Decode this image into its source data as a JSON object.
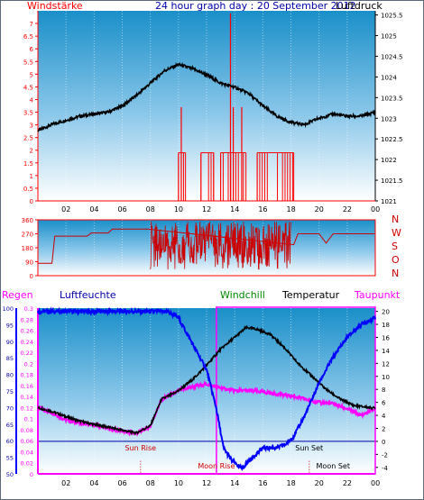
{
  "page": {
    "title": "24 hour graph day : 20 September 2012"
  },
  "chart_data": [
    {
      "type": "line",
      "title": "24 hour graph day : 20 September 2012",
      "left_label": "Windstärke",
      "right_label": "Luftdruck",
      "x_ticks": [
        "02",
        "04",
        "06",
        "08",
        "10",
        "12",
        "14",
        "16",
        "18",
        "20",
        "22",
        "00"
      ],
      "left_ticks": [
        "0",
        "0.5",
        "1",
        "1.5",
        "2",
        "2.5",
        "3",
        "3.5",
        "4",
        "4.5",
        "5",
        "5.5",
        "6",
        "6.5",
        "7"
      ],
      "right_ticks": [
        "1021",
        "1021.5",
        "1022",
        "1022.5",
        "1023",
        "1023.5",
        "1024",
        "1024.5",
        "1025",
        "1025.5"
      ],
      "ylim_left": [
        0,
        7.5
      ],
      "ylim_right": [
        1021,
        1025.6
      ],
      "series": [
        {
          "name": "Luftdruck",
          "axis": "right",
          "color": "#000000",
          "points": [
            [
              0,
              1022.7
            ],
            [
              1,
              1022.85
            ],
            [
              2,
              1022.95
            ],
            [
              3,
              1023.05
            ],
            [
              4,
              1023.1
            ],
            [
              5,
              1023.15
            ],
            [
              6,
              1023.3
            ],
            [
              7,
              1023.55
            ],
            [
              8,
              1023.85
            ],
            [
              9,
              1024.15
            ],
            [
              10,
              1024.3
            ],
            [
              11,
              1024.2
            ],
            [
              12,
              1024.05
            ],
            [
              13,
              1023.85
            ],
            [
              14,
              1023.75
            ],
            [
              15,
              1023.6
            ],
            [
              16,
              1023.3
            ],
            [
              17,
              1023.05
            ],
            [
              18,
              1022.9
            ],
            [
              19,
              1022.85
            ],
            [
              20,
              1023.0
            ],
            [
              21,
              1023.1
            ],
            [
              22,
              1023.05
            ],
            [
              23,
              1023.05
            ],
            [
              24,
              1023.15
            ]
          ]
        },
        {
          "name": "Windstärke",
          "axis": "left",
          "color": "#ff0000",
          "segments": [
            [
              10.0,
              10.5,
              1.9
            ],
            [
              11.6,
              12.5,
              1.9
            ],
            [
              13.0,
              14.8,
              1.9
            ],
            [
              15.6,
              18.2,
              1.9
            ]
          ],
          "spikes": [
            [
              10.2,
              3.7
            ],
            [
              13.7,
              7.4
            ],
            [
              13.9,
              3.7
            ],
            [
              14.5,
              3.7
            ]
          ]
        }
      ]
    },
    {
      "type": "line",
      "right_letters": [
        "N",
        "W",
        "S",
        "O",
        "N"
      ],
      "y_ticks": [
        "0",
        "90",
        "180",
        "270",
        "360"
      ],
      "ylim": [
        0,
        360
      ],
      "x_ticks": [
        "02",
        "04",
        "06",
        "08",
        "10",
        "12",
        "14",
        "16",
        "18",
        "20",
        "22",
        "00"
      ],
      "series": [
        {
          "name": "Windrichtung",
          "color": "#cc0000",
          "points": [
            [
              0,
              80
            ],
            [
              1,
              80
            ],
            [
              1.2,
              255
            ],
            [
              3.5,
              255
            ],
            [
              3.8,
              275
            ],
            [
              5,
              275
            ],
            [
              5.3,
              300
            ],
            [
              7.8,
              300
            ],
            [
              8,
              90
            ],
            [
              9,
              140
            ],
            [
              10,
              230
            ],
            [
              11,
              180
            ],
            [
              12,
              320
            ],
            [
              13,
              110
            ],
            [
              14,
              280
            ],
            [
              15,
              170
            ],
            [
              16,
              260
            ],
            [
              17,
              180
            ],
            [
              17.8,
              290
            ],
            [
              18.2,
              200
            ],
            [
              18.5,
              270
            ],
            [
              20,
              270
            ],
            [
              20.5,
              210
            ],
            [
              21,
              270
            ],
            [
              24,
              270
            ]
          ]
        }
      ]
    },
    {
      "type": "line",
      "legend": [
        "Regen",
        "Luftfeuchte",
        "Windchill",
        "Temperatur",
        "Taupunkt"
      ],
      "x_ticks": [
        "02",
        "04",
        "06",
        "08",
        "10",
        "12",
        "14",
        "16",
        "18",
        "20",
        "22",
        "00"
      ],
      "regen_ticks": [
        "0",
        "0.02",
        "0.04",
        "0.06",
        "0.08",
        "0.1",
        "0.12",
        "0.14",
        "0.16",
        "0.18",
        "0.2",
        "0.22",
        "0.24",
        "0.26",
        "0.28",
        "0.3"
      ],
      "feuchte_ticks": [
        "50",
        "55",
        "60",
        "65",
        "70",
        "75",
        "80",
        "85",
        "90",
        "95",
        "100"
      ],
      "temp_ticks": [
        "-4",
        "-2",
        "0",
        "2",
        "4",
        "6",
        "8",
        "10",
        "12",
        "14",
        "16",
        "18",
        "20"
      ],
      "ylim_temp": [
        -5,
        20.5
      ],
      "annotations": [
        {
          "text": "Sun Rise",
          "x": 7.3
        },
        {
          "text": "Sun Set",
          "x": 19.3
        },
        {
          "text": "Moon Rise",
          "x": 12.7
        },
        {
          "text": "Moon Set",
          "x": 21.0
        }
      ],
      "series": [
        {
          "name": "Luftfeuchte",
          "color": "#0000ff",
          "points": [
            [
              0,
              20
            ],
            [
              9.2,
              20
            ],
            [
              10,
              19
            ],
            [
              11,
              15
            ],
            [
              12,
              11
            ],
            [
              12.7,
              5
            ],
            [
              13.2,
              -1
            ],
            [
              13.8,
              -3
            ],
            [
              14.5,
              -4.2
            ],
            [
              15,
              -3
            ],
            [
              16,
              -1
            ],
            [
              17,
              -1
            ],
            [
              17.6,
              -0.5
            ],
            [
              18.2,
              0.8
            ],
            [
              19,
              4
            ],
            [
              20,
              9
            ],
            [
              21,
              13
            ],
            [
              22,
              16
            ],
            [
              23,
              18
            ],
            [
              24,
              19
            ]
          ]
        },
        {
          "name": "Temperatur",
          "color": "#000000",
          "points": [
            [
              0,
              5.2
            ],
            [
              1,
              4.6
            ],
            [
              2,
              3.8
            ],
            [
              3,
              3.1
            ],
            [
              4,
              2.6
            ],
            [
              5,
              2.2
            ],
            [
              6,
              1.7
            ],
            [
              7,
              1.3
            ],
            [
              8,
              2.4
            ],
            [
              8.8,
              6.5
            ],
            [
              9.5,
              7.2
            ],
            [
              10,
              7.8
            ],
            [
              11,
              9.5
            ],
            [
              12,
              11.7
            ],
            [
              13,
              14.2
            ],
            [
              14,
              16
            ],
            [
              14.8,
              17.5
            ],
            [
              15.5,
              17.3
            ],
            [
              16.5,
              16.5
            ],
            [
              17.5,
              14.5
            ],
            [
              18.5,
              12
            ],
            [
              19.5,
              10
            ],
            [
              20.5,
              8
            ],
            [
              21.5,
              6.5
            ],
            [
              22.5,
              5.5
            ],
            [
              24,
              5.1
            ]
          ]
        },
        {
          "name": "Taupunkt",
          "color": "#ff00ff",
          "points": [
            [
              0,
              5.2
            ],
            [
              1,
              4.4
            ],
            [
              2,
              3.3
            ],
            [
              3,
              2.8
            ],
            [
              4,
              2.5
            ],
            [
              5,
              2.0
            ],
            [
              6,
              1.6
            ],
            [
              7,
              1.2
            ],
            [
              8,
              2.3
            ],
            [
              8.8,
              6.5
            ],
            [
              9.5,
              7.2
            ],
            [
              10,
              7.8
            ],
            [
              11,
              8.4
            ],
            [
              12,
              8.8
            ],
            [
              13,
              8.2
            ],
            [
              14,
              7.8
            ],
            [
              15,
              7.8
            ],
            [
              16,
              7.6
            ],
            [
              17,
              7.3
            ],
            [
              18,
              7.0
            ],
            [
              19,
              6.5
            ],
            [
              20,
              6.0
            ],
            [
              21,
              5.8
            ],
            [
              22,
              5.0
            ],
            [
              23,
              4.0
            ],
            [
              24,
              5.0
            ]
          ]
        },
        {
          "name": "Windchill",
          "color": "#008800",
          "points": []
        },
        {
          "name": "Regen",
          "color": "#ff00ff",
          "points": [
            [
              0,
              0
            ],
            [
              24,
              0
            ]
          ]
        }
      ]
    }
  ]
}
